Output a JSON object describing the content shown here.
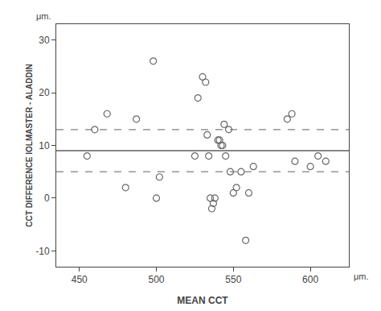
{
  "chart_data": {
    "type": "scatter",
    "x": [
      455,
      460,
      468,
      480,
      487,
      498,
      500,
      502,
      525,
      527,
      530,
      532,
      533,
      534,
      535,
      536,
      537,
      538,
      540,
      541,
      542,
      543,
      544,
      545,
      547,
      548,
      550,
      552,
      555,
      558,
      560,
      563,
      585,
      588,
      590,
      600,
      605,
      610
    ],
    "values": [
      8,
      13,
      16,
      2,
      15,
      26,
      0,
      4,
      8,
      19,
      23,
      22,
      12,
      8,
      0,
      -2,
      -1,
      0,
      11,
      11,
      10,
      10,
      14,
      8,
      13,
      5,
      1,
      2,
      5,
      -8,
      1,
      6,
      15,
      16,
      7,
      6,
      8,
      7
    ],
    "marker": "circle-open",
    "color": "dimgray",
    "hlines": [
      {
        "value": 9.0,
        "line_style": "solid",
        "color": "#606060"
      },
      {
        "value": 13.0,
        "line_style": "dashed",
        "color": "#808080"
      },
      {
        "value": 5.0,
        "line_style": "dashed",
        "color": "#808080"
      }
    ],
    "xlim": [
      435,
      625
    ],
    "ylim": [
      -13,
      33
    ],
    "xticks": [
      450,
      500,
      550,
      600
    ],
    "yticks": [
      -10,
      0,
      10,
      20,
      30
    ],
    "xlabel": "MEAN CCT",
    "ylabel": "CCT DIFFERENCE IOLMASTER - ALADDIN",
    "annotations": [
      "μm.",
      "μm."
    ],
    "grid": false
  }
}
